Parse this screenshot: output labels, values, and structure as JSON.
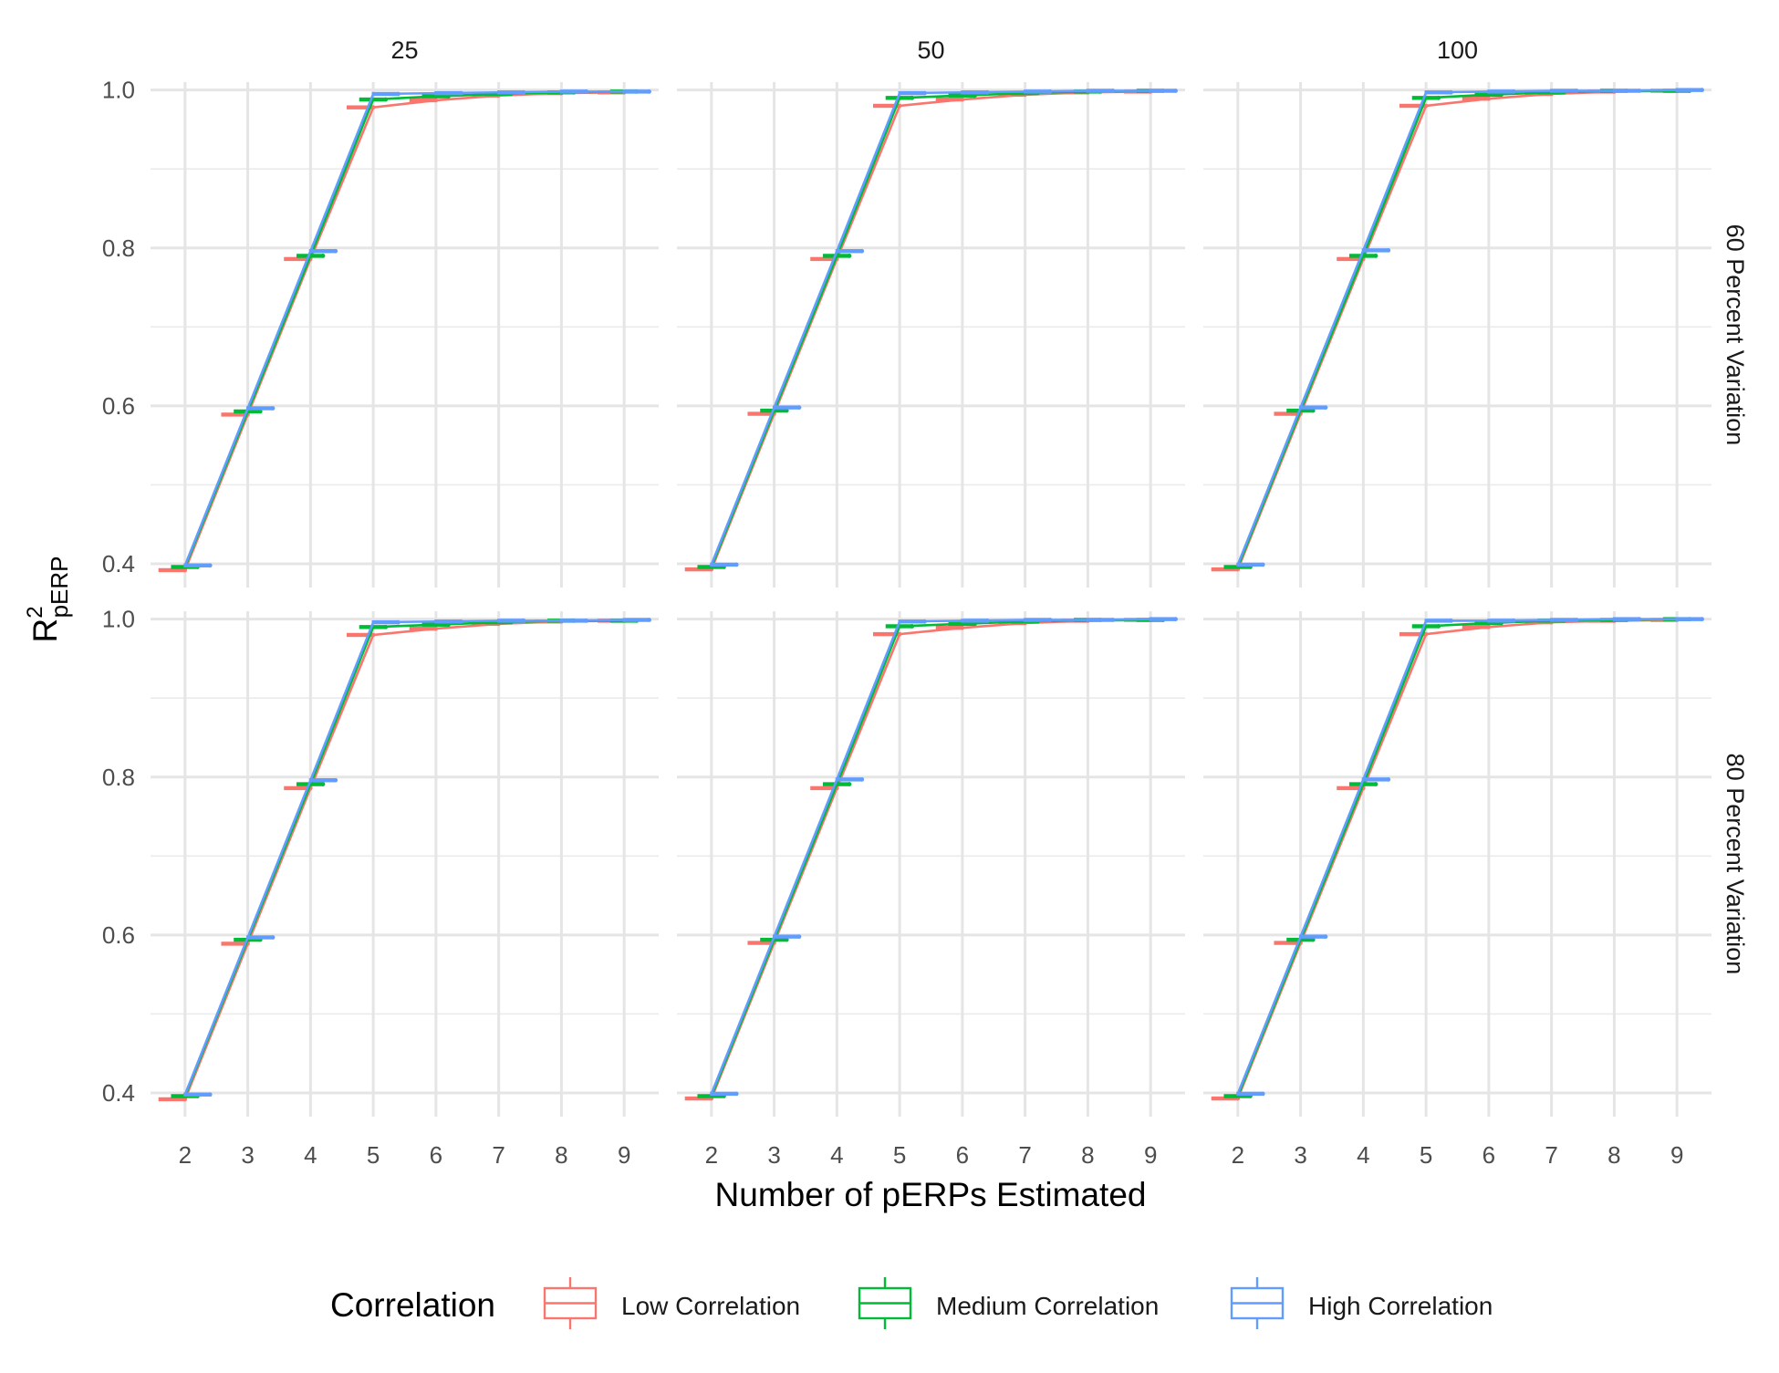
{
  "chart_data": {
    "type": "box-line",
    "xlabel": "Number of pERPs Estimated",
    "ylabel": {
      "base": "R",
      "sup": "2",
      "sub": "pERP"
    },
    "x": [
      2,
      3,
      4,
      5,
      6,
      7,
      8,
      9
    ],
    "xticks": [
      "2",
      "3",
      "4",
      "5",
      "6",
      "7",
      "8",
      "9"
    ],
    "ylim": [
      0.37,
      1.01
    ],
    "yticks": [
      0.4,
      0.6,
      0.8,
      1.0
    ],
    "ytick_labels": [
      "0.4",
      "0.6",
      "0.8",
      "1.0"
    ],
    "grid": true,
    "legend_position": "bottom",
    "columns": [
      "25",
      "50",
      "100"
    ],
    "rows": [
      "60 Percent Variation",
      "80 Percent Variation"
    ],
    "legend": {
      "title": "Correlation",
      "items": [
        {
          "name": "Low Correlation",
          "color": "#F8766D"
        },
        {
          "name": "Medium Correlation",
          "color": "#00BA38"
        },
        {
          "name": "High Correlation",
          "color": "#619CFF"
        }
      ]
    },
    "panels": [
      {
        "row": 0,
        "col": 0,
        "series": [
          {
            "name": "Low Correlation",
            "values": [
              0.392,
              0.589,
              0.786,
              0.978,
              0.987,
              0.993,
              0.996,
              0.997
            ]
          },
          {
            "name": "Medium Correlation",
            "values": [
              0.396,
              0.593,
              0.79,
              0.988,
              0.992,
              0.995,
              0.997,
              0.998
            ]
          },
          {
            "name": "High Correlation",
            "values": [
              0.398,
              0.597,
              0.796,
              0.995,
              0.996,
              0.997,
              0.998,
              0.998
            ]
          }
        ]
      },
      {
        "row": 0,
        "col": 1,
        "series": [
          {
            "name": "Low Correlation",
            "values": [
              0.393,
              0.59,
              0.786,
              0.98,
              0.988,
              0.994,
              0.997,
              0.998
            ]
          },
          {
            "name": "Medium Correlation",
            "values": [
              0.396,
              0.594,
              0.79,
              0.99,
              0.993,
              0.996,
              0.998,
              0.999
            ]
          },
          {
            "name": "High Correlation",
            "values": [
              0.399,
              0.598,
              0.796,
              0.996,
              0.997,
              0.998,
              0.999,
              0.999
            ]
          }
        ]
      },
      {
        "row": 0,
        "col": 2,
        "series": [
          {
            "name": "Low Correlation",
            "values": [
              0.393,
              0.59,
              0.786,
              0.98,
              0.989,
              0.995,
              0.998,
              0.999
            ]
          },
          {
            "name": "Medium Correlation",
            "values": [
              0.396,
              0.594,
              0.79,
              0.99,
              0.994,
              0.997,
              0.999,
              0.999
            ]
          },
          {
            "name": "High Correlation",
            "values": [
              0.399,
              0.598,
              0.797,
              0.997,
              0.998,
              0.999,
              0.999,
              1.0
            ]
          }
        ]
      },
      {
        "row": 1,
        "col": 0,
        "series": [
          {
            "name": "Low Correlation",
            "values": [
              0.392,
              0.589,
              0.786,
              0.98,
              0.988,
              0.994,
              0.997,
              0.998
            ]
          },
          {
            "name": "Medium Correlation",
            "values": [
              0.396,
              0.594,
              0.791,
              0.99,
              0.993,
              0.996,
              0.998,
              0.998
            ]
          },
          {
            "name": "High Correlation",
            "values": [
              0.398,
              0.597,
              0.796,
              0.996,
              0.997,
              0.998,
              0.998,
              0.999
            ]
          }
        ]
      },
      {
        "row": 1,
        "col": 1,
        "series": [
          {
            "name": "Low Correlation",
            "values": [
              0.393,
              0.59,
              0.786,
              0.981,
              0.989,
              0.995,
              0.998,
              0.999
            ]
          },
          {
            "name": "Medium Correlation",
            "values": [
              0.396,
              0.594,
              0.791,
              0.991,
              0.994,
              0.997,
              0.999,
              0.999
            ]
          },
          {
            "name": "High Correlation",
            "values": [
              0.399,
              0.598,
              0.797,
              0.997,
              0.998,
              0.999,
              0.999,
              1.0
            ]
          }
        ]
      },
      {
        "row": 1,
        "col": 2,
        "series": [
          {
            "name": "Low Correlation",
            "values": [
              0.393,
              0.59,
              0.786,
              0.981,
              0.99,
              0.996,
              0.998,
              0.999
            ]
          },
          {
            "name": "Medium Correlation",
            "values": [
              0.396,
              0.594,
              0.791,
              0.991,
              0.995,
              0.998,
              0.999,
              1.0
            ]
          },
          {
            "name": "High Correlation",
            "values": [
              0.399,
              0.598,
              0.797,
              0.998,
              0.998,
              0.999,
              1.0,
              1.0
            ]
          }
        ]
      }
    ]
  }
}
